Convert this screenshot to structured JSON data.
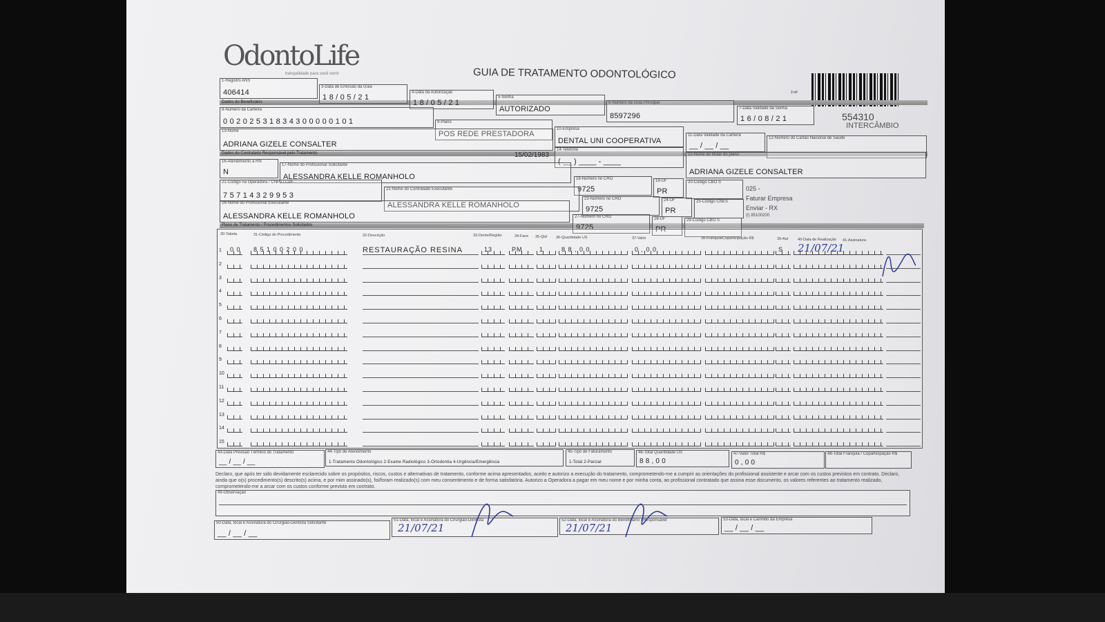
{
  "header": {
    "logo": "OdontoLife",
    "tagline": "tranquilidade para você sorrir",
    "title": "GUIA DE TRATAMENTO ODONTOLÓGICO",
    "barcode_number": "554310",
    "intercambio": "INTERCÂMBIO",
    "small_code": "2-nF"
  },
  "sections": {
    "beneficiario": "Dados do Beneficiário",
    "contratado": "Dados do Contratado Responsável pelo Tratamento",
    "plano": "Plano de Tratamento / Procedimentos Solicitados"
  },
  "fields": [
    {
      "label": "1-Registro ANS",
      "value": "406414"
    },
    {
      "label": "3-Data de Emissão da Guia",
      "value": "1 8 / 0 5 / 2 1"
    },
    {
      "label": "4-Data da Autorização",
      "value": "1 8 / 0 5 / 2 1"
    },
    {
      "label": "5-Senha",
      "value": "AUTORIZADO"
    },
    {
      "label": "6-Número da Guia Principal",
      "value": "8597296"
    },
    {
      "label": "7-Data Validade da Senha",
      "value": "1 6 / 0 8 / 2 1"
    },
    {
      "label": "8-Número da Carteira",
      "value": "0 0 2 0 2 5 3 1 8 3 4 3 0 0 0 0 0 1 0 1"
    },
    {
      "label": "9-Plano",
      "value": "POS REDE PRESTADORA"
    },
    {
      "label": "10-Empresa",
      "value": "DENTAL UNI  COOPERATIVA"
    },
    {
      "label": "11-Data Validade da Carteira",
      "value": "__ / __ / __"
    },
    {
      "label": "12-Número do Cartão Nacional de Saúde",
      "value": ""
    },
    {
      "label": "13-Nome",
      "value": "ADRIANA GIZELE CONSALTER"
    },
    {
      "label": "14-Telefone",
      "value": "( __ )  ____ - ____"
    },
    {
      "label": "15-Nome do titular do plano",
      "value": "ADRIANA GIZELE CONSALTER"
    },
    {
      "label": "16-Atendimento a RN",
      "value": "N"
    },
    {
      "label": "17-Nome do Profissional Solicitante",
      "value": "ALESSANDRA KELLE ROMANHOLO"
    },
    {
      "label": "18-Número no CRO",
      "value": "9725"
    },
    {
      "label": "19-UF",
      "value": "PR"
    },
    {
      "label": "20-Código CBO S",
      "value": ""
    },
    {
      "label": "21-Código na Operadora / CNPJ / CPF",
      "value": "7 5 7 1 4 3 2 9 9 5 3"
    },
    {
      "label": "22-Nome do Contratado Executante",
      "value": "ALESSANDRA KELLE ROMANHOLO"
    },
    {
      "label": "23-Número no CRO",
      "value": "9725"
    },
    {
      "label": "24-UF",
      "value": "PR"
    },
    {
      "label": "25-Código CNES",
      "value": ""
    },
    {
      "label": "26-Nome do Profissional Executante",
      "value": "ALESSANDRA KELLE ROMANHOLO"
    },
    {
      "label": "27-Número no CRO",
      "value": "9725"
    },
    {
      "label": "28-UF",
      "value": "PR"
    },
    {
      "label": "29-Código CBO S",
      "value": ""
    }
  ],
  "birth_date": "15/02/1983",
  "side_notes": [
    "025 -",
    "Faturar Empresa",
    "Enviar - RX",
    "(I) 85100200"
  ],
  "table": {
    "headers": [
      "30-Tabela",
      "31-Código do Procedimento",
      "32-Descrição",
      "33-Dente/Região",
      "34-Face",
      "35-Qtd",
      "36-Quantidade US",
      "37-Valor",
      "38-Franquia/Coparticipação R$",
      "39-Aut",
      "40-Data de Realização",
      "41-Assinatura"
    ],
    "rows": [
      {
        "num": "1",
        "tabela": "0 0",
        "codigo": "8 5 1 0 0 2 0 0",
        "descricao": "RESTAURAÇÃO RESINA",
        "dente": "13",
        "face": "PM",
        "qtd": "1",
        "qtd_us": "8 8 , 0 0",
        "valor": "0 , 0 0",
        "aut": "S",
        "data": "21/07/21"
      },
      {
        "num": "2"
      },
      {
        "num": "3"
      },
      {
        "num": "4"
      },
      {
        "num": "5"
      },
      {
        "num": "6"
      },
      {
        "num": "7"
      },
      {
        "num": "8"
      },
      {
        "num": "9"
      },
      {
        "num": "10"
      },
      {
        "num": "11"
      },
      {
        "num": "12"
      },
      {
        "num": "13"
      },
      {
        "num": "14"
      },
      {
        "num": "15"
      }
    ]
  },
  "totals": [
    {
      "label": "43-Data Previsão Término do Tratamento",
      "value": "__ / __ / __"
    },
    {
      "label": "44-Tipo de Atendimento",
      "value": "1-Tratamento Odontológico  2-Exame Radiológico  3-Ortodontia  4-Urgência/Emergência"
    },
    {
      "label": "45-Tipo de Faturamento",
      "value": "1-Total  2-Parcial"
    },
    {
      "label": "46-Total Quantidade US",
      "value": "8 8 , 0 0"
    },
    {
      "label": "47-Valor Total R$",
      "value": "0 , 0 0"
    },
    {
      "label": "48-Total Franquia / Coparticipação R$",
      "value": ""
    }
  ],
  "declaration": "Declaro, que após ter sido devidamente esclarecido sobre os propósitos, riscos, custos e alternativas de tratamento, conforme acima apresentados, aceito e autorizo a execução do tratamento, comprometendo-me a cumprir as orientações do profissional assistente e arcar com os custos previstos em contrato. Declaro, ainda que o(s) procedimento(s) descrito(s) acima, e por mim assinado(s), foi/foram realizado(s) com meu consentimento e de forma satisfatória. Autorizo a Operadora a pagar em meu nome e por minha conta, ao profissional contratado que assina esse documento, os valores referentes ao tratamento realizado, comprometendo-me a arcar com os custos conforme previsto em contrato.",
  "observacao_label": "49-Observação",
  "signatures": [
    {
      "label": "50-Data, local e Assinatura do Cirurgião-Dentista Solicitante",
      "value": "__ / __ / __"
    },
    {
      "label": "51-Data, local e Assinatura do Cirurgião-Dentista",
      "value": "21/07/21"
    },
    {
      "label": "52-Data, local e Assinatura do Beneficiário / Responsável",
      "value": "21/07/21"
    },
    {
      "label": "53-Data, local e Carimbo da Empresa",
      "value": "__ / __ / __"
    }
  ]
}
